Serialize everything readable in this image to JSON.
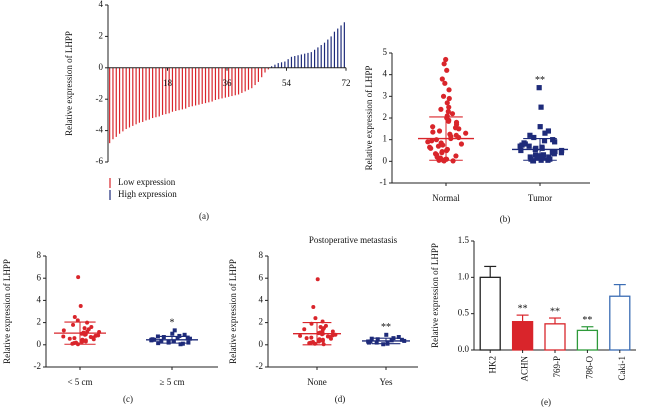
{
  "colors": {
    "red": "#d9252b",
    "blue": "#1e2b7a",
    "green": "#2e9a3a",
    "lightblue": "#3b6db4",
    "axis": "#222222"
  },
  "chart_data": [
    {
      "id": "a",
      "type": "bar",
      "panel_label": "(a)",
      "ylabel": "Relative expression of LHPP",
      "ylim": [
        -6,
        4
      ],
      "yticks": [
        -6,
        -4,
        -2,
        0,
        2,
        4
      ],
      "xlim": [
        0,
        72
      ],
      "xticks": [
        18,
        36,
        54,
        72
      ],
      "grid": false,
      "legend": {
        "position": "bottom-left",
        "entries": [
          {
            "label": "Low expression",
            "color": "#d9252b"
          },
          {
            "label": "High expression",
            "color": "#1e2b7a"
          }
        ]
      },
      "values": [
        -4.8,
        -4.55,
        -4.4,
        -4.2,
        -4.05,
        -3.9,
        -3.8,
        -3.7,
        -3.6,
        -3.5,
        -3.45,
        -3.35,
        -3.3,
        -3.2,
        -3.15,
        -3.1,
        -3.0,
        -2.95,
        -2.9,
        -2.8,
        -2.75,
        -2.7,
        -2.65,
        -2.6,
        -2.5,
        -2.45,
        -2.4,
        -2.35,
        -2.3,
        -2.25,
        -2.2,
        -2.15,
        -2.05,
        -2.0,
        -1.95,
        -1.9,
        -1.85,
        -1.8,
        -1.75,
        -1.7,
        -1.6,
        -1.5,
        -1.4,
        -1.3,
        -1.1,
        -0.9,
        -0.6,
        -0.3,
        -0.1,
        0.1,
        0.2,
        0.3,
        0.35,
        0.4,
        0.55,
        0.7,
        0.75,
        0.8,
        0.85,
        0.9,
        0.95,
        1.0,
        1.15,
        1.3,
        1.45,
        1.6,
        1.8,
        2.0,
        2.3,
        2.5,
        2.7,
        2.9
      ]
    },
    {
      "id": "b",
      "type": "scatter",
      "panel_label": "(b)",
      "ylabel": "Relative expression of LHPP",
      "ylim": [
        -1,
        5
      ],
      "yticks": [
        -1,
        0,
        1,
        2,
        3,
        4,
        5
      ],
      "categories": [
        "Normal",
        "Tumor"
      ],
      "annotations": [
        {
          "category": "Tumor",
          "text": "**"
        }
      ],
      "series": [
        {
          "category": "Normal",
          "color": "#d9252b",
          "marker": "circle",
          "mean": 1.05,
          "sd": 1.0,
          "values": [
            4.7,
            4.5,
            4.2,
            3.8,
            3.6,
            3.3,
            3.0,
            2.9,
            2.7,
            2.5,
            2.4,
            2.3,
            2.2,
            2.1,
            2.0,
            1.9,
            1.85,
            1.8,
            1.7,
            1.6,
            1.55,
            1.5,
            1.4,
            1.35,
            1.3,
            1.25,
            1.2,
            1.15,
            1.1,
            1.05,
            1.0,
            0.95,
            0.9,
            0.85,
            0.8,
            0.75,
            0.7,
            0.65,
            0.6,
            0.55,
            0.5,
            0.45,
            0.4,
            0.35,
            0.3,
            0.25,
            0.2,
            0.15,
            0.1,
            0.1,
            0.05,
            0.05,
            0.02,
            0.02
          ]
        },
        {
          "category": "Tumor",
          "color": "#1e2b7a",
          "marker": "square",
          "mean": 0.55,
          "sd": 0.5,
          "values": [
            3.4,
            2.5,
            1.6,
            1.4,
            1.3,
            1.2,
            1.1,
            1.0,
            0.95,
            0.9,
            0.85,
            0.8,
            0.75,
            0.7,
            0.7,
            0.65,
            0.6,
            0.6,
            0.55,
            0.5,
            0.5,
            0.45,
            0.45,
            0.4,
            0.4,
            0.35,
            0.3,
            0.3,
            0.25,
            0.25,
            0.2,
            0.2,
            0.15,
            0.15,
            0.1,
            0.1,
            0.05,
            0.05,
            0.02,
            0.02
          ]
        }
      ]
    },
    {
      "id": "c",
      "type": "scatter",
      "panel_label": "(c)",
      "ylabel": "Relative expression of LHPP",
      "ylim": [
        -2,
        8
      ],
      "yticks": [
        -2,
        0,
        2,
        4,
        6,
        8
      ],
      "categories": [
        "< 5 cm",
        "≥ 5 cm"
      ],
      "annotations": [
        {
          "category": "≥ 5 cm",
          "text": "*"
        }
      ],
      "series": [
        {
          "category": "< 5 cm",
          "color": "#d9252b",
          "marker": "circle",
          "mean": 1.05,
          "sd": 1.0,
          "values": [
            6.1,
            3.5,
            2.5,
            2.2,
            2.0,
            1.8,
            1.6,
            1.5,
            1.4,
            1.3,
            1.2,
            1.15,
            1.1,
            1.0,
            0.95,
            0.9,
            0.85,
            0.8,
            0.75,
            0.7,
            0.65,
            0.6,
            0.55,
            0.5,
            0.45,
            0.4,
            0.35,
            0.3,
            0.25,
            0.2,
            0.15,
            0.1,
            0.05
          ]
        },
        {
          "category": "≥ 5 cm",
          "color": "#1e2b7a",
          "marker": "square",
          "mean": 0.45,
          "sd": 0.3,
          "values": [
            1.3,
            1.0,
            0.9,
            0.8,
            0.75,
            0.7,
            0.65,
            0.6,
            0.55,
            0.5,
            0.45,
            0.45,
            0.4,
            0.35,
            0.3,
            0.3,
            0.25,
            0.2,
            0.2,
            0.15,
            0.1,
            0.05
          ]
        }
      ]
    },
    {
      "id": "d",
      "type": "scatter",
      "panel_label": "(d)",
      "title": "Postoperative metastasis",
      "ylabel": "Relative expression of LHPP",
      "ylim": [
        -2,
        8
      ],
      "yticks": [
        -2,
        0,
        2,
        4,
        6,
        8
      ],
      "categories": [
        "None",
        "Yes"
      ],
      "annotations": [
        {
          "category": "Yes",
          "text": "**"
        }
      ],
      "series": [
        {
          "category": "None",
          "color": "#d9252b",
          "marker": "circle",
          "mean": 1.0,
          "sd": 1.0,
          "values": [
            5.9,
            3.4,
            2.4,
            2.1,
            1.9,
            1.7,
            1.6,
            1.5,
            1.4,
            1.3,
            1.2,
            1.1,
            1.05,
            1.0,
            0.95,
            0.9,
            0.85,
            0.8,
            0.75,
            0.7,
            0.65,
            0.6,
            0.55,
            0.5,
            0.45,
            0.4,
            0.35,
            0.3,
            0.25,
            0.2,
            0.15,
            0.1,
            0.05
          ]
        },
        {
          "category": "Yes",
          "color": "#1e2b7a",
          "marker": "square",
          "mean": 0.35,
          "sd": 0.25,
          "values": [
            0.9,
            0.7,
            0.6,
            0.55,
            0.5,
            0.45,
            0.4,
            0.35,
            0.3,
            0.3,
            0.25,
            0.2,
            0.2,
            0.15,
            0.1,
            0.05
          ]
        }
      ]
    },
    {
      "id": "e",
      "type": "bar",
      "panel_label": "(e)",
      "ylabel": "Relative expression of LHPP",
      "ylim": [
        0,
        1.5
      ],
      "yticks": [
        0.0,
        0.5,
        1.0,
        1.5
      ],
      "categories": [
        "HK2",
        "ACHN",
        "769-P",
        "786-O",
        "Caki-1"
      ],
      "values": [
        1.0,
        0.39,
        0.36,
        0.27,
        0.74
      ],
      "errors": [
        0.15,
        0.09,
        0.08,
        0.05,
        0.16
      ],
      "annotations": [
        "",
        "**",
        "**",
        "**",
        ""
      ],
      "colors": [
        "#222222",
        "#d9252b",
        "#d9252b",
        "#2e9a3a",
        "#3b6db4"
      ],
      "filled": [
        false,
        true,
        false,
        false,
        false
      ]
    }
  ]
}
